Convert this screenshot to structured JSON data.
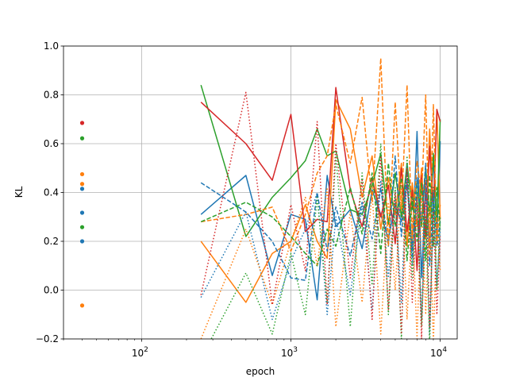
{
  "chart_data": {
    "type": "line",
    "xlabel": "epoch",
    "ylabel": "KL",
    "xscale": "log",
    "xlim": [
      30,
      13000
    ],
    "ylim": [
      -0.2,
      1.0
    ],
    "grid": true,
    "x_ticks": [
      {
        "value": 100,
        "base": "10",
        "exp": "2"
      },
      {
        "value": 1000,
        "base": "10",
        "exp": "3"
      },
      {
        "value": 10000,
        "base": "10",
        "exp": "4"
      }
    ],
    "y_ticks": [
      "−0.2",
      "0.0",
      "0.2",
      "0.4",
      "0.6",
      "0.8",
      "1.0"
    ],
    "y_tick_values": [
      -0.2,
      0.0,
      0.2,
      0.4,
      0.6,
      0.8,
      1.0
    ],
    "colors": {
      "blue": "#1f77b4",
      "orange": "#ff7f0e",
      "green": "#2ca02c",
      "red": "#d62728"
    },
    "points_at_x": 40,
    "points": [
      {
        "color": "red",
        "y": 0.685
      },
      {
        "color": "green",
        "y": 0.622
      },
      {
        "color": "orange",
        "y": 0.475
      },
      {
        "color": "orange",
        "y": 0.435
      },
      {
        "color": "blue",
        "y": 0.415
      },
      {
        "color": "blue",
        "y": 0.317
      },
      {
        "color": "green",
        "y": 0.258
      },
      {
        "color": "blue",
        "y": 0.2
      },
      {
        "color": "orange",
        "y": -0.063
      }
    ],
    "series": [
      {
        "color": "blue",
        "style": "solid",
        "x": [
          250,
          500,
          750,
          1000,
          1250,
          1500,
          1750,
          2000,
          2500,
          3000,
          3500,
          4000,
          4500,
          5000,
          5500,
          6000,
          6500,
          7000,
          7500,
          8000,
          8500,
          9000,
          9500,
          10000
        ],
        "y": [
          0.31,
          0.47,
          0.06,
          0.31,
          0.29,
          -0.04,
          0.47,
          0.26,
          0.33,
          0.17,
          0.41,
          0.31,
          0.21,
          0.35,
          0.28,
          0.44,
          0.16,
          0.65,
          0.05,
          0.42,
          0.18,
          0.55,
          0.22,
          0.61
        ]
      },
      {
        "color": "orange",
        "style": "solid",
        "x": [
          250,
          500,
          750,
          1000,
          1250,
          1500,
          1750,
          2000,
          2500,
          3000,
          3500,
          4000,
          4500,
          5000,
          5500,
          6000,
          6500,
          7000,
          7500,
          8000,
          8500,
          9000,
          9500,
          10000
        ],
        "y": [
          0.2,
          -0.05,
          0.15,
          0.2,
          0.35,
          0.2,
          0.13,
          0.78,
          0.66,
          0.38,
          0.55,
          0.25,
          0.46,
          0.31,
          0.52,
          0.18,
          0.44,
          0.26,
          0.5,
          0.21,
          0.66,
          0.32,
          0.74,
          0.29
        ]
      },
      {
        "color": "green",
        "style": "solid",
        "x": [
          250,
          500,
          750,
          1000,
          1250,
          1500,
          1750,
          2000,
          2500,
          3000,
          3500,
          4000,
          4500,
          5000,
          5500,
          6000,
          6500,
          7000,
          7500,
          8000,
          8500,
          9000,
          9500,
          10000
        ],
        "y": [
          0.84,
          0.22,
          0.38,
          0.46,
          0.53,
          0.66,
          0.55,
          0.57,
          0.33,
          0.31,
          0.43,
          0.56,
          0.27,
          0.48,
          0.3,
          0.52,
          0.33,
          0.44,
          0.26,
          0.5,
          0.31,
          0.56,
          0.28,
          0.7
        ]
      },
      {
        "color": "red",
        "style": "solid",
        "x": [
          250,
          500,
          750,
          1000,
          1250,
          1500,
          1750,
          2000,
          2500,
          3000,
          3500,
          4000,
          4500,
          5000,
          5500,
          6000,
          6500,
          7000,
          7500,
          8000,
          8500,
          9000,
          9500,
          10000
        ],
        "y": [
          0.77,
          0.6,
          0.45,
          0.72,
          0.24,
          0.29,
          0.28,
          0.83,
          0.41,
          0.26,
          0.46,
          0.3,
          0.43,
          0.19,
          0.5,
          0.24,
          0.41,
          0.08,
          0.47,
          0.22,
          0.59,
          0.31,
          0.74,
          0.69
        ]
      },
      {
        "color": "blue",
        "style": "dashed",
        "x": [
          250,
          500,
          750,
          1000,
          1250,
          1500,
          1750,
          2000,
          2500,
          3000,
          3500,
          4000,
          4500,
          5000,
          5500,
          6000,
          6500,
          7000,
          7500,
          8000,
          8500,
          9000,
          9500,
          10000
        ],
        "y": [
          0.44,
          0.32,
          0.2,
          0.05,
          0.04,
          0.4,
          0.16,
          0.34,
          0.14,
          0.36,
          0.21,
          0.42,
          0.18,
          0.55,
          0.22,
          0.5,
          0.13,
          0.46,
          0.28,
          0.52,
          0.1,
          0.4,
          0.18,
          0.28
        ]
      },
      {
        "color": "orange",
        "style": "dashed",
        "x": [
          250,
          500,
          750,
          1000,
          1250,
          1500,
          1750,
          2000,
          2500,
          3000,
          3500,
          4000,
          4500,
          5000,
          5500,
          6000,
          6500,
          7000,
          7500,
          8000,
          8500,
          9000,
          9500,
          10000
        ],
        "y": [
          0.28,
          0.31,
          0.34,
          0.16,
          0.31,
          0.48,
          0.55,
          0.76,
          0.52,
          0.79,
          0.36,
          0.95,
          0.18,
          0.77,
          0.33,
          0.84,
          0.21,
          0.53,
          0.38,
          0.8,
          0.14,
          0.76,
          0.2,
          0.35
        ]
      },
      {
        "color": "green",
        "style": "dashed",
        "x": [
          250,
          500,
          750,
          1000,
          1250,
          1500,
          1750,
          2000,
          2500,
          3000,
          3500,
          4000,
          4500,
          5000,
          5500,
          6000,
          6500,
          7000,
          7500,
          8000,
          8500,
          9000,
          9500,
          10000
        ],
        "y": [
          0.28,
          0.36,
          0.3,
          0.22,
          0.15,
          0.1,
          0.25,
          0.18,
          0.42,
          0.23,
          0.48,
          0.15,
          0.52,
          0.26,
          0.46,
          0.12,
          0.38,
          0.2,
          0.44,
          0.12,
          0.47,
          0.18,
          0.42,
          0.25
        ]
      },
      {
        "color": "blue",
        "style": "dotted",
        "x": [
          250,
          500,
          750,
          1000,
          1250,
          1500,
          1750,
          2000,
          2500,
          3000,
          3500,
          4000,
          4500,
          5000,
          5500,
          6000,
          6500,
          7000,
          7500,
          8000,
          8500,
          9000,
          9500,
          10000
        ],
        "y": [
          -0.03,
          0.32,
          -0.12,
          0.12,
          0.25,
          0.4,
          -0.1,
          0.3,
          -0.02,
          0.35,
          -0.08,
          0.45,
          0.05,
          0.38,
          -0.05,
          0.52,
          0.1,
          0.4,
          -0.12,
          0.44,
          -0.18,
          0.35,
          0.02,
          0.25
        ]
      },
      {
        "color": "orange",
        "style": "dotted",
        "x": [
          250,
          500,
          750,
          1000,
          1250,
          1500,
          1750,
          2000,
          2500,
          3000,
          3500,
          4000,
          4500,
          5000,
          5500,
          6000,
          6500,
          7000,
          7500,
          8000,
          8500,
          9000,
          9500,
          10000
        ],
        "y": [
          -0.2,
          0.25,
          -0.06,
          0.2,
          0.38,
          0.1,
          0.42,
          -0.15,
          0.32,
          -0.05,
          0.4,
          -0.18,
          0.36,
          0.0,
          0.44,
          -0.12,
          0.3,
          -0.2,
          0.38,
          -0.1,
          0.34,
          -0.22,
          0.3,
          0.08
        ]
      },
      {
        "color": "green",
        "style": "dotted",
        "x": [
          250,
          500,
          750,
          1000,
          1250,
          1500,
          1750,
          2000,
          2500,
          3000,
          3500,
          4000,
          4500,
          5000,
          5500,
          6000,
          6500,
          7000,
          7500,
          8000,
          8500,
          9000,
          9500,
          10000
        ],
        "y": [
          -0.28,
          0.07,
          -0.18,
          0.15,
          -0.1,
          0.38,
          -0.05,
          0.55,
          -0.15,
          0.48,
          0.02,
          0.6,
          -0.1,
          0.42,
          -0.2,
          0.55,
          0.05,
          0.4,
          -0.15,
          0.3,
          -0.22,
          0.42,
          0.0,
          0.3
        ]
      },
      {
        "color": "red",
        "style": "dotted",
        "x": [
          250,
          500,
          750,
          1000,
          1250,
          1500,
          1750,
          2000,
          2500,
          3000,
          3500,
          4000,
          4500,
          5000,
          5500,
          6000,
          6500,
          7000,
          7500,
          8000,
          8500,
          9000,
          9500,
          10000
        ],
        "y": [
          -0.02,
          0.81,
          -0.06,
          0.35,
          0.08,
          0.69,
          -0.06,
          0.6,
          0.05,
          0.45,
          -0.12,
          0.55,
          -0.08,
          0.4,
          -0.18,
          0.5,
          -0.05,
          0.38,
          -0.2,
          0.45,
          -0.15,
          0.32,
          -0.1,
          0.22
        ]
      }
    ]
  }
}
